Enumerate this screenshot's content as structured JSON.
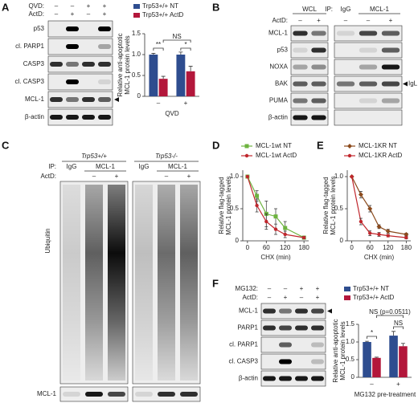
{
  "panel_letters": [
    "A",
    "B",
    "C",
    "D",
    "E",
    "F"
  ],
  "blots": [
    {
      "conditions": [
        {
          "label": "QVD:",
          "marks": [
            "–",
            "–",
            "+",
            "+"
          ]
        },
        {
          "label": "ActD:",
          "marks": [
            "–",
            "+",
            "–",
            "+"
          ]
        }
      ],
      "rows": [
        "p53",
        "cl. PARP1",
        "CASP3",
        "cl. CASP3",
        "MCL-1",
        "β-actin"
      ]
    },
    {
      "headers": {
        "wcl": "WCL",
        "ip": "IP:",
        "igg": "IgG",
        "mcl": "MCL-1"
      },
      "conditions": [
        {
          "label": "ActD:",
          "marks": [
            "–",
            "+",
            "–",
            "–",
            "+"
          ]
        }
      ],
      "rows": [
        "MCL-1",
        "p53",
        "NOXA",
        "BAK",
        "PUMA",
        "β-actin"
      ],
      "annotation": "IgL"
    },
    {
      "genotypes": [
        "Trp53+/+",
        "Trp53-/-"
      ],
      "ip": {
        "label": "IP:",
        "lanes": [
          "IgG",
          "MCL-1",
          "IgG",
          "MCL-1"
        ]
      },
      "actd": {
        "label": "ActD:",
        "marks": [
          "–",
          "+",
          "–",
          "+"
        ]
      },
      "rows": [
        "Ubiquitin",
        "MCL-1"
      ]
    },
    {
      "conditions": [
        {
          "label": "MG132:",
          "marks": [
            "–",
            "–",
            "+",
            "+"
          ]
        },
        {
          "label": "ActD:",
          "marks": [
            "–",
            "+",
            "–",
            "+"
          ]
        }
      ],
      "rows": [
        "MCL-1",
        "PARP1",
        "cl. PARP1",
        "cl. CASP3",
        "β-actin"
      ]
    }
  ],
  "chart_data": [
    {
      "type": "bar",
      "ylabel": [
        "Relative anti-apoptotic",
        "MCL-1 protein levels"
      ],
      "xlabel": "QVD",
      "categories": [
        "–",
        "+"
      ],
      "series": [
        {
          "name": "Trp53+/+ NT",
          "color": "#2e4d8f",
          "values": [
            1.0,
            1.0
          ],
          "errors": [
            0.03,
            0.06
          ]
        },
        {
          "name": "Trp53+/+ ActD",
          "color": "#b3173b",
          "values": [
            0.42,
            0.6
          ],
          "errors": [
            0.06,
            0.12
          ]
        }
      ],
      "ylim": [
        0,
        1.5
      ],
      "yticks": [
        0,
        0.5,
        {
          "value": 1,
          "label": "1.0"
        },
        1.5
      ],
      "annotations": [
        "**",
        "NS",
        "*"
      ]
    },
    {
      "type": "line",
      "ylabel": [
        "Relative flag-tagged",
        "MCL-1 protein levels"
      ],
      "xlabel": "CHX (min)",
      "x": [
        0,
        30,
        60,
        90,
        120,
        180
      ],
      "series": [
        {
          "name": "MCL-1wt NT",
          "color": "#6db33f",
          "marker": "square",
          "values": [
            1.0,
            0.7,
            0.42,
            0.38,
            0.2,
            0.05
          ],
          "errors": [
            0,
            0.08,
            0.2,
            0.12,
            0.1,
            0.02
          ]
        },
        {
          "name": "MCL-1wt ActD",
          "color": "#c0272d",
          "marker": "circle",
          "values": [
            1.0,
            0.55,
            0.3,
            0.18,
            0.1,
            0.05
          ],
          "errors": [
            0,
            0.1,
            0.12,
            0.08,
            0.05,
            0.02
          ]
        }
      ],
      "xlim": [
        -15,
        195
      ],
      "xticks": [
        0,
        60,
        120,
        180
      ],
      "ylim": [
        0,
        1.1
      ],
      "yticks": [
        0,
        0.5,
        {
          "value": 1,
          "label": "1.0"
        }
      ]
    },
    {
      "type": "line",
      "ylabel": [
        "Relative flag-tagged",
        "MCL-1 protein levels"
      ],
      "xlabel": "CHX (min)",
      "x": [
        0,
        30,
        60,
        90,
        120,
        180
      ],
      "series": [
        {
          "name": "MCL-1KR NT",
          "color": "#8b4a1c",
          "marker": "diamond",
          "values": [
            1.0,
            0.72,
            0.5,
            0.22,
            0.15,
            0.1
          ],
          "errors": [
            0,
            0.05,
            0.05,
            0.03,
            0.03,
            0.02
          ]
        },
        {
          "name": "MCL-1KR ActD",
          "color": "#c0272d",
          "marker": "circle",
          "values": [
            1.0,
            0.3,
            0.12,
            0.1,
            0.08,
            0.05
          ],
          "errors": [
            0,
            0.05,
            0.04,
            0.03,
            0.02,
            0.02
          ]
        }
      ],
      "xlim": [
        -15,
        195
      ],
      "xticks": [
        0,
        60,
        120,
        180
      ],
      "ylim": [
        0,
        1.1
      ],
      "yticks": [
        0,
        0.5,
        {
          "value": 1,
          "label": "1.0"
        }
      ]
    },
    {
      "type": "bar",
      "ylabel": [
        "Relative anti-apoptotic",
        "MCL-1 protein levels"
      ],
      "xlabel": "MG132 pre-treatment",
      "categories": [
        "–",
        "+"
      ],
      "series": [
        {
          "name": "Trp53+/+ NT",
          "color": "#2e4d8f",
          "values": [
            1.0,
            1.18
          ],
          "errors": [
            0.02,
            0.12
          ]
        },
        {
          "name": "Trp53+/+ ActD",
          "color": "#b3173b",
          "values": [
            0.55,
            0.88
          ],
          "errors": [
            0.02,
            0.08
          ]
        }
      ],
      "ylim": [
        0,
        1.5
      ],
      "yticks": [
        0,
        0.5,
        {
          "value": 1,
          "label": "1.0"
        },
        1.5
      ],
      "annotations": [
        "*",
        "NS (p=0.0511)",
        "NS"
      ]
    }
  ]
}
